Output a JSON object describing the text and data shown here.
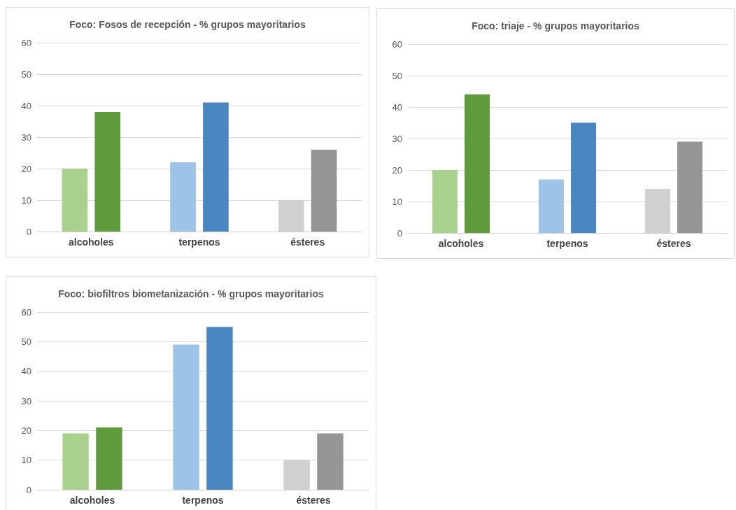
{
  "chart_data": [
    {
      "type": "bar",
      "title": "Foco: Fosos de recepción - % grupos mayoritarios",
      "categories": [
        "alcoholes",
        "terpenos",
        "ésteres"
      ],
      "series": [
        {
          "colors": [
            "#a9d18e",
            "#9dc3e6",
            "#d0d0d0"
          ],
          "values": [
            20,
            22,
            10
          ]
        },
        {
          "colors": [
            "#5f9a3c",
            "#4a86c0",
            "#959595"
          ],
          "values": [
            38,
            41,
            26
          ]
        }
      ],
      "ylim": [
        0,
        60
      ],
      "yticks": [
        0,
        10,
        20,
        30,
        40,
        50,
        60
      ],
      "grid": "y"
    },
    {
      "type": "bar",
      "title": "Foco: triaje - % grupos mayoritarios",
      "categories": [
        "alcoholes",
        "terpenos",
        "ésteres"
      ],
      "series": [
        {
          "colors": [
            "#a9d18e",
            "#9dc3e6",
            "#d0d0d0"
          ],
          "values": [
            20,
            17,
            14
          ]
        },
        {
          "colors": [
            "#5f9a3c",
            "#4a86c0",
            "#959595"
          ],
          "values": [
            44,
            35,
            29
          ]
        }
      ],
      "ylim": [
        0,
        60
      ],
      "yticks": [
        0,
        10,
        20,
        30,
        40,
        50,
        60
      ],
      "grid": "y"
    },
    {
      "type": "bar",
      "title": "Foco: biofiltros biometanización - % grupos mayoritarios",
      "categories": [
        "alcoholes",
        "terpenos",
        "ésteres"
      ],
      "series": [
        {
          "colors": [
            "#a9d18e",
            "#9dc3e6",
            "#d0d0d0"
          ],
          "values": [
            19,
            49,
            10
          ]
        },
        {
          "colors": [
            "#5f9a3c",
            "#4a86c0",
            "#959595"
          ],
          "values": [
            21,
            55,
            19
          ]
        }
      ],
      "ylim": [
        0,
        60
      ],
      "yticks": [
        0,
        10,
        20,
        30,
        40,
        50,
        60
      ],
      "grid": "y"
    }
  ]
}
